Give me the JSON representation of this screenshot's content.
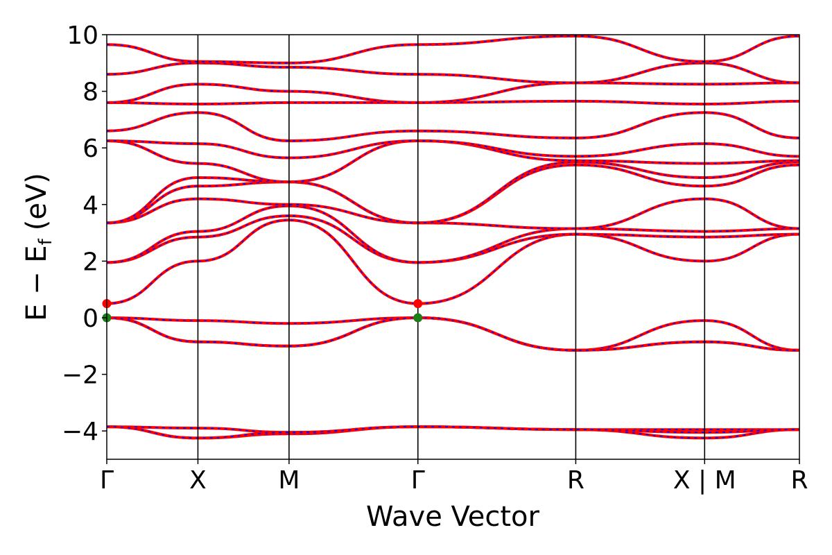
{
  "chart_data": {
    "type": "line",
    "title": "",
    "xlabel": "Wave Vector",
    "ylabel": "E − E_f (eV)",
    "ylabel_parts": {
      "main": "E − E",
      "sub": "f",
      "unit": "(eV)"
    },
    "ylim": [
      -5,
      10
    ],
    "yticks": [
      -4,
      -2,
      0,
      2,
      4,
      6,
      8,
      10
    ],
    "ytick_labels": [
      "−4",
      "−2",
      "0",
      "2",
      "4",
      "6",
      "8",
      "10"
    ],
    "xlim": [
      0,
      7.6
    ],
    "kpoints": [
      {
        "label": "Γ",
        "x": 0.0
      },
      {
        "label": "X",
        "x": 1.0
      },
      {
        "label": "M",
        "x": 2.0
      },
      {
        "label": "Γ",
        "x": 3.414
      },
      {
        "label": "R",
        "x": 5.146
      },
      {
        "label": "X | M",
        "x": 6.56
      },
      {
        "label": "R",
        "x": 7.6
      }
    ],
    "markers": [
      {
        "name": "CBM",
        "x": 0.0,
        "y": 0.5,
        "color": "#ff0000"
      },
      {
        "name": "VBM",
        "x": 0.0,
        "y": 0.0,
        "color": "#1a7f1a"
      },
      {
        "name": "CBM",
        "x": 3.414,
        "y": 0.5,
        "color": "#ff0000"
      },
      {
        "name": "VBM",
        "x": 3.414,
        "y": 0.0,
        "color": "#1a7f1a"
      }
    ],
    "series_style": {
      "solid_color": "#ff0000",
      "dash_color": "#0000ff"
    },
    "bands": [
      {
        "x": [
          0,
          1,
          2,
          3.414,
          5.146,
          6.56,
          7.6
        ],
        "y": [
          -3.85,
          -3.9,
          -4.05,
          -3.85,
          -3.95,
          -3.95,
          -3.95
        ]
      },
      {
        "x": [
          0,
          1,
          2,
          3.414,
          5.146,
          6.56,
          7.6
        ],
        "y": [
          -3.85,
          -4.25,
          -4.1,
          -3.85,
          -3.95,
          -4.25,
          -3.95
        ]
      },
      {
        "x": [
          0,
          1,
          2,
          3.414,
          5.146,
          6.56,
          7.6
        ],
        "y": [
          -3.85,
          -4.25,
          -4.05,
          -3.85,
          -3.95,
          -4.05,
          -3.95
        ]
      },
      {
        "x": [
          0,
          1,
          2,
          3.414,
          5.146,
          6.56,
          7.6
        ],
        "y": [
          0.0,
          -0.1,
          -0.2,
          0.0,
          -1.15,
          -0.1,
          -1.15
        ]
      },
      {
        "x": [
          0,
          1,
          2,
          3.414,
          5.146,
          6.56,
          7.6
        ],
        "y": [
          0.0,
          -0.85,
          -1.0,
          0.0,
          -1.15,
          -0.85,
          -1.15
        ]
      },
      {
        "x": [
          0,
          1,
          2,
          3.414,
          5.146,
          6.56,
          7.6
        ],
        "y": [
          0.0,
          -0.85,
          -1.0,
          0.0,
          -1.15,
          -0.85,
          -1.15
        ]
      },
      {
        "x": [
          0,
          1,
          2,
          3.414,
          5.146,
          6.56,
          7.6
        ],
        "y": [
          0.5,
          2.0,
          3.45,
          0.5,
          2.95,
          2.0,
          2.95
        ]
      },
      {
        "x": [
          0,
          1,
          2,
          3.414,
          5.146,
          6.56,
          7.6
        ],
        "y": [
          1.95,
          2.85,
          3.6,
          1.95,
          2.95,
          2.85,
          2.95
        ]
      },
      {
        "x": [
          0,
          1,
          2,
          3.414,
          5.146,
          6.56,
          7.6
        ],
        "y": [
          1.95,
          3.05,
          3.95,
          1.95,
          3.15,
          3.05,
          3.15
        ]
      },
      {
        "x": [
          0,
          1,
          2,
          3.414,
          5.146,
          6.56,
          7.6
        ],
        "y": [
          3.35,
          4.2,
          4.0,
          3.35,
          3.15,
          4.2,
          3.15
        ]
      },
      {
        "x": [
          0,
          1,
          2,
          3.414,
          5.146,
          6.56,
          7.6
        ],
        "y": [
          3.35,
          4.65,
          4.8,
          3.35,
          5.4,
          4.65,
          5.4
        ]
      },
      {
        "x": [
          0,
          1,
          2,
          3.414,
          5.146,
          6.56,
          7.6
        ],
        "y": [
          3.35,
          4.95,
          4.8,
          3.35,
          5.5,
          4.95,
          5.5
        ]
      },
      {
        "x": [
          0,
          1,
          2,
          3.414,
          5.146,
          6.56,
          7.6
        ],
        "y": [
          6.25,
          5.45,
          4.8,
          6.25,
          5.55,
          5.45,
          5.55
        ]
      },
      {
        "x": [
          0,
          1,
          2,
          3.414,
          5.146,
          6.56,
          7.6
        ],
        "y": [
          6.25,
          6.15,
          5.65,
          6.25,
          5.7,
          6.15,
          5.7
        ]
      },
      {
        "x": [
          0,
          1,
          2,
          3.414,
          5.146,
          6.56,
          7.6
        ],
        "y": [
          6.6,
          7.25,
          6.25,
          6.6,
          6.35,
          7.25,
          6.35
        ]
      },
      {
        "x": [
          0,
          1,
          2,
          3.414,
          5.146,
          6.56,
          7.6
        ],
        "y": [
          7.6,
          7.55,
          7.6,
          7.6,
          7.65,
          7.55,
          7.65
        ]
      },
      {
        "x": [
          0,
          1,
          2,
          3.414,
          5.146,
          6.56,
          7.6
        ],
        "y": [
          7.6,
          8.25,
          8.0,
          7.6,
          8.3,
          8.25,
          8.3
        ]
      },
      {
        "x": [
          0,
          1,
          2,
          3.414,
          5.146,
          6.56,
          7.6
        ],
        "y": [
          8.6,
          9.0,
          8.85,
          8.6,
          8.3,
          9.0,
          8.3
        ]
      },
      {
        "x": [
          0,
          1,
          2,
          3.414,
          5.146,
          6.56,
          7.6
        ],
        "y": [
          9.65,
          9.05,
          9.0,
          9.65,
          9.95,
          9.05,
          9.95
        ]
      }
    ]
  }
}
